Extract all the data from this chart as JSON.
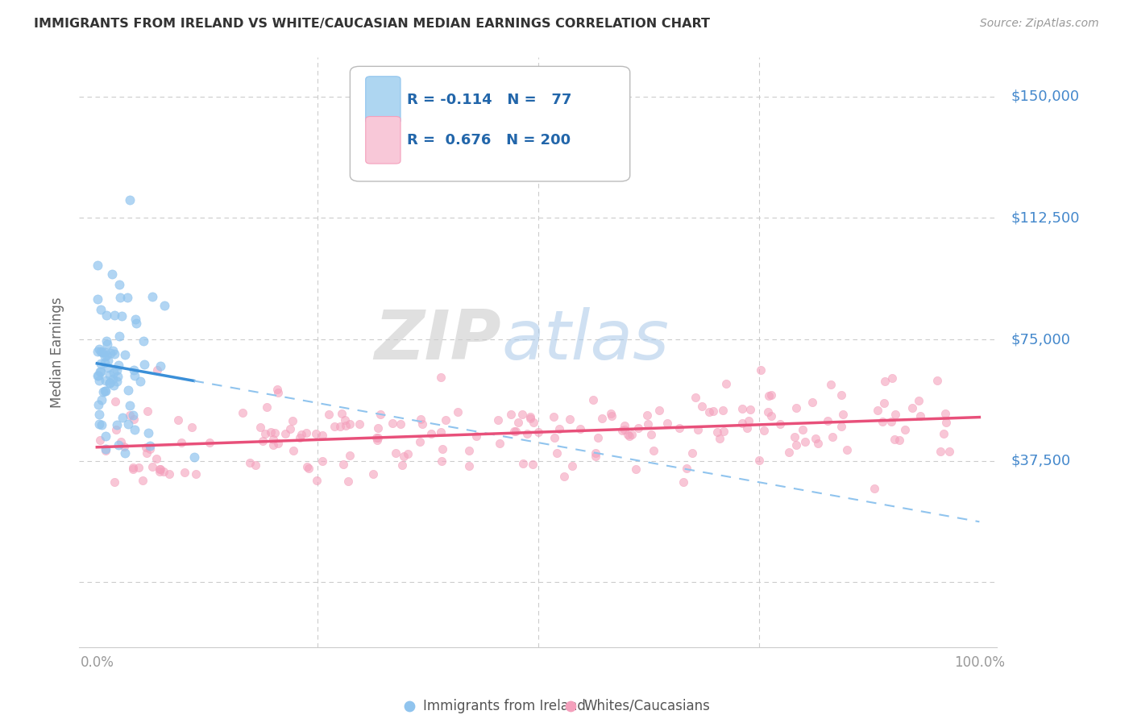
{
  "title": "IMMIGRANTS FROM IRELAND VS WHITE/CAUCASIAN MEDIAN EARNINGS CORRELATION CHART",
  "source": "Source: ZipAtlas.com",
  "ylabel": "Median Earnings",
  "yticks": [
    0,
    37500,
    75000,
    112500,
    150000
  ],
  "ytick_labels": [
    "",
    "$37,500",
    "$75,000",
    "$112,500",
    "$150,000"
  ],
  "xtick_labels": [
    "0.0%",
    "100.0%"
  ],
  "blue_color": "#90C4EE",
  "pink_color": "#F4A0BC",
  "blue_line_color": "#3A8FD8",
  "pink_line_color": "#E8507A",
  "dashed_line_color": "#90C4EE",
  "watermark_zip": "ZIP",
  "watermark_atlas": "atlas",
  "grid_color": "#CCCCCC",
  "title_color": "#333333",
  "right_label_color": "#4488CC",
  "blue_R": -0.114,
  "blue_N": 77,
  "pink_R": 0.676,
  "pink_N": 200,
  "blue_seed": 10,
  "pink_seed": 55,
  "legend_text_color": "#2266AA"
}
